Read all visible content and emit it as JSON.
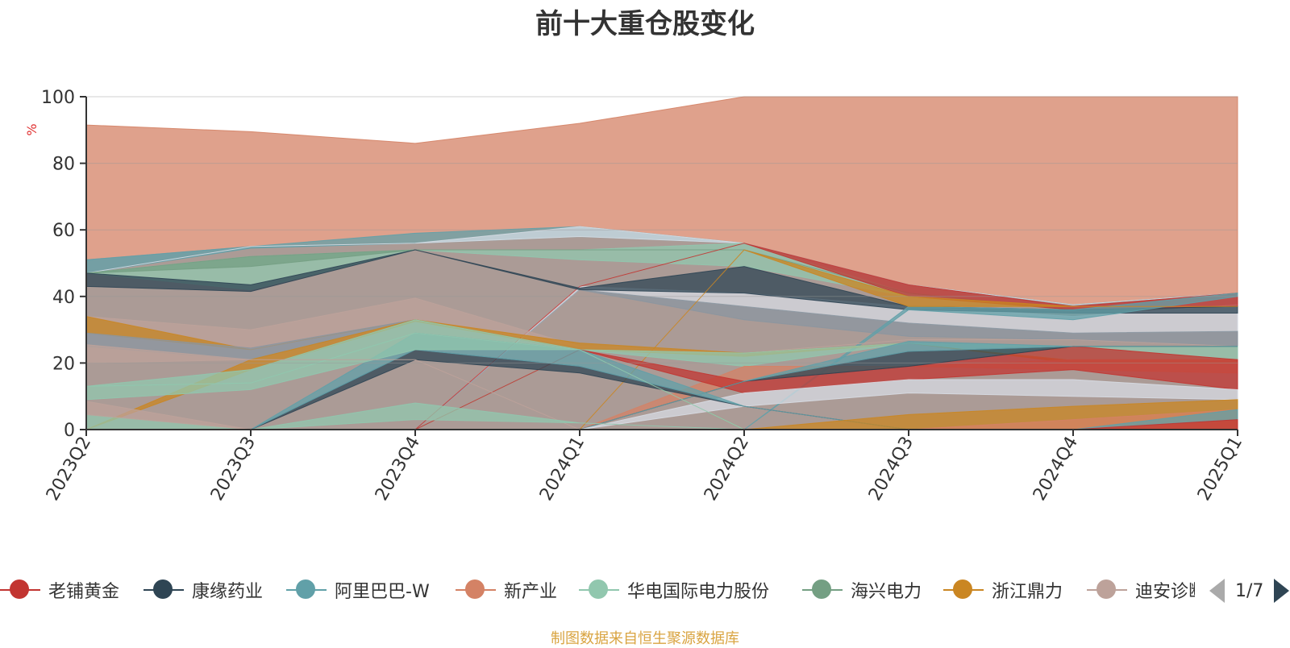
{
  "title": "前十大重仓股变化",
  "source_note": "制图数据来自恒生聚源数据库",
  "pager": {
    "text": "1/7"
  },
  "legend": [
    {
      "name": "老铺黄金",
      "color": "#c23531"
    },
    {
      "name": "康缘药业",
      "color": "#2f4554"
    },
    {
      "name": "阿里巴巴-W",
      "color": "#61a0a8"
    },
    {
      "name": "新产业",
      "color": "#d48265"
    },
    {
      "name": "华电国际电力股份",
      "color": "#91c7ae"
    },
    {
      "name": "海兴电力",
      "color": "#749f83"
    },
    {
      "name": "浙江鼎力",
      "color": "#ca8622"
    },
    {
      "name": "迪安诊断",
      "color": "#bda29a"
    }
  ],
  "chart_data": {
    "type": "area",
    "title": "前十大重仓股变化",
    "ylabel": "%",
    "ylim": [
      0,
      100
    ],
    "yticks": [
      0,
      20,
      40,
      60,
      80,
      100
    ],
    "grid": true,
    "legend_position": "bottom",
    "categories": [
      "2023Q2",
      "2023Q3",
      "2023Q4",
      "2024Q1",
      "2024Q2",
      "2024Q3",
      "2024Q4",
      "2025Q1"
    ],
    "layers": [
      {
        "color": "#d48265",
        "top": [
          91.5,
          89.5,
          86,
          92,
          100,
          100,
          100,
          100
        ],
        "bottom": [
          0,
          0,
          0,
          0,
          0,
          0,
          0,
          0
        ]
      },
      {
        "color": "#999999",
        "top": [
          51,
          55,
          56,
          61,
          56,
          43.5,
          37.5,
          41
        ],
        "bottom": [
          0,
          0,
          0,
          0,
          0,
          0,
          0,
          0
        ]
      },
      {
        "color": "#61a0a8",
        "top": [
          51,
          55,
          59,
          61,
          56,
          43.5,
          37.5,
          41
        ],
        "bottom": [
          47,
          54.5,
          56,
          58,
          56,
          43.5,
          37.5,
          41
        ]
      },
      {
        "color": "#d7dbe3",
        "top": [
          47,
          55,
          56,
          61,
          56,
          43.5,
          37.5,
          41
        ],
        "bottom": [
          47,
          55,
          56,
          58,
          56,
          43.5,
          37.5,
          41
        ]
      },
      {
        "color": "#91c7ae",
        "top": [
          47,
          52,
          54,
          54,
          56,
          41,
          36,
          41
        ],
        "bottom": [
          47,
          42,
          54,
          51,
          49,
          40,
          36,
          41
        ]
      },
      {
        "color": "#749f83",
        "top": [
          47,
          52,
          54,
          54,
          54,
          41,
          36,
          41
        ],
        "bottom": [
          47,
          49,
          54,
          54,
          54,
          41,
          36,
          41
        ]
      },
      {
        "color": "#d7dbe3",
        "top": [
          0,
          0,
          0,
          43,
          41,
          37,
          34,
          37.5
        ],
        "bottom": [
          0,
          0,
          0,
          42,
          37,
          32,
          29,
          29.5
        ]
      },
      {
        "color": "#8b96a0",
        "top": [
          0,
          0,
          0,
          42,
          37,
          32,
          29,
          29.5
        ],
        "bottom": [
          0,
          0,
          0,
          42,
          33,
          28,
          27,
          25
        ]
      },
      {
        "color": "#c23531",
        "top": [
          0,
          0,
          0,
          43,
          56,
          43.5,
          37,
          41
        ],
        "bottom": [
          0,
          0,
          0,
          43,
          56,
          40,
          36,
          37
        ]
      },
      {
        "color": "#2f4554",
        "top": [
          47,
          43.5,
          54,
          42.5,
          49,
          37,
          36,
          37
        ],
        "bottom": [
          43,
          41.5,
          54,
          42,
          41,
          36,
          35,
          35
        ]
      },
      {
        "color": "#61a0a8",
        "top": [
          0,
          0,
          0,
          0,
          0,
          37,
          36,
          41
        ],
        "bottom": [
          0,
          0,
          0,
          0,
          0,
          36,
          33,
          40
        ]
      },
      {
        "color": "#ca8622",
        "top": [
          0,
          0,
          0,
          0,
          54,
          40,
          37,
          37
        ],
        "bottom": [
          0,
          0,
          0,
          0,
          54,
          37,
          37,
          37
        ]
      },
      {
        "color": "#bda29a",
        "top": [
          34,
          30,
          39.5,
          25,
          23,
          27,
          27,
          25
        ],
        "bottom": [
          34,
          24,
          33,
          25,
          23,
          27,
          27,
          25
        ]
      },
      {
        "color": "#ca8622",
        "top": [
          34,
          24,
          33,
          26,
          23,
          26,
          21,
          21
        ],
        "bottom": [
          29,
          24,
          33,
          24,
          22,
          26,
          20,
          20
        ]
      },
      {
        "color": "#91c7ae",
        "top": [
          0,
          0,
          0,
          24,
          23,
          26,
          25,
          25
        ],
        "bottom": [
          0,
          0,
          0,
          24,
          19,
          26,
          21,
          21
        ]
      },
      {
        "color": "#8b96a0",
        "top": [
          29,
          24.5,
          33,
          24,
          0,
          0,
          0,
          0
        ],
        "bottom": [
          25,
          21,
          33,
          24,
          0,
          0,
          0,
          0
        ]
      },
      {
        "color": "#ca8622",
        "top": [
          0,
          21,
          33,
          24,
          0,
          0,
          0,
          0
        ],
        "bottom": [
          0,
          18,
          32.5,
          24,
          0,
          0,
          0,
          0
        ]
      },
      {
        "color": "#91c7ae",
        "top": [
          13,
          18,
          33,
          24,
          0,
          0,
          0,
          0
        ],
        "bottom": [
          13,
          14,
          29,
          24,
          0,
          0,
          0,
          0
        ]
      },
      {
        "color": "#d48265",
        "top": [
          0,
          0,
          0,
          0,
          19,
          19,
          21,
          21
        ],
        "bottom": [
          0,
          0,
          0,
          0,
          14.5,
          19,
          18,
          17
        ]
      },
      {
        "color": "#c23531",
        "top": [
          0,
          0,
          0,
          24,
          14.5,
          19,
          25,
          21
        ],
        "bottom": [
          0,
          0,
          0,
          24,
          11,
          15,
          18,
          12
        ]
      },
      {
        "color": "#2f4554",
        "top": [
          0,
          0,
          0,
          0,
          14.5,
          23.5,
          25,
          25
        ],
        "bottom": [
          0,
          0,
          0,
          0,
          14.5,
          19,
          25,
          25
        ]
      },
      {
        "color": "#61a0a8",
        "top": [
          0,
          0,
          0,
          0,
          14.5,
          26.5,
          25,
          25
        ],
        "bottom": [
          0,
          0,
          0,
          0,
          14.5,
          23.5,
          25,
          25
        ]
      },
      {
        "color": "#d7dbe3",
        "top": [
          0,
          0,
          0,
          0,
          11,
          15,
          15,
          12
        ],
        "bottom": [
          0,
          0,
          0,
          0,
          7,
          11,
          10,
          9
        ]
      },
      {
        "color": "#2f4554",
        "top": [
          0,
          0,
          24,
          19,
          7,
          0,
          0,
          0
        ],
        "bottom": [
          0,
          0,
          21,
          17,
          7,
          0,
          0,
          0
        ]
      },
      {
        "color": "#61a0a8",
        "top": [
          0,
          0,
          29,
          24,
          7,
          0,
          0,
          0
        ],
        "bottom": [
          0,
          0,
          24,
          19,
          7,
          0,
          0,
          0
        ]
      },
      {
        "color": "#91c7ae",
        "top": [
          13,
          14,
          29,
          24,
          0,
          0,
          0,
          0
        ],
        "bottom": [
          9,
          12,
          24,
          24,
          0,
          0,
          0,
          0
        ]
      },
      {
        "color": "#bda29a",
        "top": [
          25.5,
          21,
          21,
          0,
          0,
          0,
          0,
          0
        ],
        "bottom": [
          20,
          21,
          21,
          0,
          0,
          0,
          0,
          0
        ]
      },
      {
        "color": "#91c7ae",
        "top": [
          4.5,
          0,
          8,
          2,
          0,
          0,
          0,
          0
        ],
        "bottom": [
          0,
          0,
          3,
          2,
          0,
          0,
          0,
          0
        ]
      },
      {
        "color": "#bda29a",
        "top": [
          8.5,
          0,
          0,
          0,
          0,
          0,
          0,
          0
        ],
        "bottom": [
          4.5,
          0,
          0,
          0,
          0,
          0,
          0,
          0
        ]
      },
      {
        "color": "#ca8622",
        "top": [
          0,
          0,
          0,
          0,
          0,
          4.5,
          7,
          9
        ],
        "bottom": [
          0,
          0,
          0,
          0,
          0,
          0,
          0,
          0
        ]
      },
      {
        "color": "#d48265",
        "top": [
          0,
          0,
          0,
          0,
          0,
          0,
          3,
          6
        ],
        "bottom": [
          0,
          0,
          0,
          0,
          0,
          0,
          0,
          0
        ]
      },
      {
        "color": "#61a0a8",
        "top": [
          0,
          0,
          0,
          0,
          0,
          0,
          0,
          6
        ],
        "bottom": [
          0,
          0,
          0,
          0,
          0,
          0,
          0,
          3
        ]
      },
      {
        "color": "#c23531",
        "top": [
          0,
          0,
          0,
          0,
          0,
          0,
          0,
          3
        ],
        "bottom": [
          0,
          0,
          0,
          0,
          0,
          0,
          0,
          0
        ]
      }
    ]
  }
}
